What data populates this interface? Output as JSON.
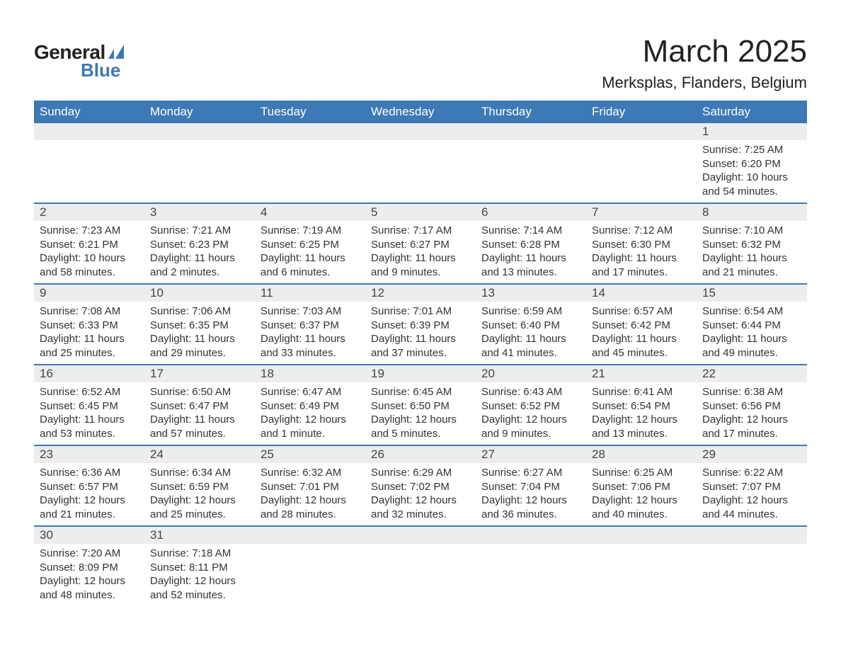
{
  "logo": {
    "text1": "General",
    "text2": "Blue",
    "tri_color": "#3d79b5"
  },
  "title": "March 2025",
  "location": "Merksplas, Flanders, Belgium",
  "colors": {
    "header_bg": "#3d79b5",
    "header_fg": "#ffffff",
    "daynum_bg": "#ededed",
    "border": "#3d79b5",
    "text": "#333333"
  },
  "day_headers": [
    "Sunday",
    "Monday",
    "Tuesday",
    "Wednesday",
    "Thursday",
    "Friday",
    "Saturday"
  ],
  "weeks": [
    {
      "nums": [
        "",
        "",
        "",
        "",
        "",
        "",
        "1"
      ],
      "cells": [
        {},
        {},
        {},
        {},
        {},
        {},
        {
          "sunrise": "7:25 AM",
          "sunset": "6:20 PM",
          "daylight": "10 hours and 54 minutes."
        }
      ]
    },
    {
      "nums": [
        "2",
        "3",
        "4",
        "5",
        "6",
        "7",
        "8"
      ],
      "cells": [
        {
          "sunrise": "7:23 AM",
          "sunset": "6:21 PM",
          "daylight": "10 hours and 58 minutes."
        },
        {
          "sunrise": "7:21 AM",
          "sunset": "6:23 PM",
          "daylight": "11 hours and 2 minutes."
        },
        {
          "sunrise": "7:19 AM",
          "sunset": "6:25 PM",
          "daylight": "11 hours and 6 minutes."
        },
        {
          "sunrise": "7:17 AM",
          "sunset": "6:27 PM",
          "daylight": "11 hours and 9 minutes."
        },
        {
          "sunrise": "7:14 AM",
          "sunset": "6:28 PM",
          "daylight": "11 hours and 13 minutes."
        },
        {
          "sunrise": "7:12 AM",
          "sunset": "6:30 PM",
          "daylight": "11 hours and 17 minutes."
        },
        {
          "sunrise": "7:10 AM",
          "sunset": "6:32 PM",
          "daylight": "11 hours and 21 minutes."
        }
      ]
    },
    {
      "nums": [
        "9",
        "10",
        "11",
        "12",
        "13",
        "14",
        "15"
      ],
      "cells": [
        {
          "sunrise": "7:08 AM",
          "sunset": "6:33 PM",
          "daylight": "11 hours and 25 minutes."
        },
        {
          "sunrise": "7:06 AM",
          "sunset": "6:35 PM",
          "daylight": "11 hours and 29 minutes."
        },
        {
          "sunrise": "7:03 AM",
          "sunset": "6:37 PM",
          "daylight": "11 hours and 33 minutes."
        },
        {
          "sunrise": "7:01 AM",
          "sunset": "6:39 PM",
          "daylight": "11 hours and 37 minutes."
        },
        {
          "sunrise": "6:59 AM",
          "sunset": "6:40 PM",
          "daylight": "11 hours and 41 minutes."
        },
        {
          "sunrise": "6:57 AM",
          "sunset": "6:42 PM",
          "daylight": "11 hours and 45 minutes."
        },
        {
          "sunrise": "6:54 AM",
          "sunset": "6:44 PM",
          "daylight": "11 hours and 49 minutes."
        }
      ]
    },
    {
      "nums": [
        "16",
        "17",
        "18",
        "19",
        "20",
        "21",
        "22"
      ],
      "cells": [
        {
          "sunrise": "6:52 AM",
          "sunset": "6:45 PM",
          "daylight": "11 hours and 53 minutes."
        },
        {
          "sunrise": "6:50 AM",
          "sunset": "6:47 PM",
          "daylight": "11 hours and 57 minutes."
        },
        {
          "sunrise": "6:47 AM",
          "sunset": "6:49 PM",
          "daylight": "12 hours and 1 minute."
        },
        {
          "sunrise": "6:45 AM",
          "sunset": "6:50 PM",
          "daylight": "12 hours and 5 minutes."
        },
        {
          "sunrise": "6:43 AM",
          "sunset": "6:52 PM",
          "daylight": "12 hours and 9 minutes."
        },
        {
          "sunrise": "6:41 AM",
          "sunset": "6:54 PM",
          "daylight": "12 hours and 13 minutes."
        },
        {
          "sunrise": "6:38 AM",
          "sunset": "6:56 PM",
          "daylight": "12 hours and 17 minutes."
        }
      ]
    },
    {
      "nums": [
        "23",
        "24",
        "25",
        "26",
        "27",
        "28",
        "29"
      ],
      "cells": [
        {
          "sunrise": "6:36 AM",
          "sunset": "6:57 PM",
          "daylight": "12 hours and 21 minutes."
        },
        {
          "sunrise": "6:34 AM",
          "sunset": "6:59 PM",
          "daylight": "12 hours and 25 minutes."
        },
        {
          "sunrise": "6:32 AM",
          "sunset": "7:01 PM",
          "daylight": "12 hours and 28 minutes."
        },
        {
          "sunrise": "6:29 AM",
          "sunset": "7:02 PM",
          "daylight": "12 hours and 32 minutes."
        },
        {
          "sunrise": "6:27 AM",
          "sunset": "7:04 PM",
          "daylight": "12 hours and 36 minutes."
        },
        {
          "sunrise": "6:25 AM",
          "sunset": "7:06 PM",
          "daylight": "12 hours and 40 minutes."
        },
        {
          "sunrise": "6:22 AM",
          "sunset": "7:07 PM",
          "daylight": "12 hours and 44 minutes."
        }
      ]
    },
    {
      "nums": [
        "30",
        "31",
        "",
        "",
        "",
        "",
        ""
      ],
      "cells": [
        {
          "sunrise": "7:20 AM",
          "sunset": "8:09 PM",
          "daylight": "12 hours and 48 minutes."
        },
        {
          "sunrise": "7:18 AM",
          "sunset": "8:11 PM",
          "daylight": "12 hours and 52 minutes."
        },
        {},
        {},
        {},
        {},
        {}
      ]
    }
  ],
  "labels": {
    "sunrise": "Sunrise: ",
    "sunset": "Sunset: ",
    "daylight": "Daylight: "
  }
}
